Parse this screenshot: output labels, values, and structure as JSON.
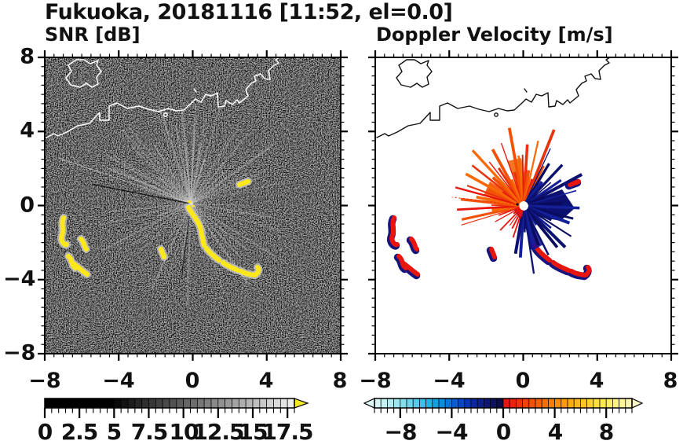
{
  "title": "Fukuoka, 20181116 [11:52, el=0.0]",
  "chart_data": [
    {
      "type": "heatmap",
      "panel": "left",
      "title": "SNR [dB]",
      "xlim": [
        -8,
        8
      ],
      "ylim": [
        -8,
        8
      ],
      "x_ticks": [
        -8,
        -4,
        0,
        4,
        8
      ],
      "y_ticks": [
        8,
        4,
        0,
        -4,
        -8
      ],
      "x_tick_labels": [
        "−8",
        "−4",
        "0",
        "4",
        "8"
      ],
      "y_tick_labels": [
        "8",
        "4",
        "0",
        "−4",
        "−8"
      ],
      "minor_tick_step": 0.5,
      "grid": false,
      "background": "black with faint gray sea-clutter speckle",
      "coastline_color": "#ffffff",
      "radar_site_xy": [
        0.1,
        0.1
      ],
      "features": [
        {
          "name": "west-echo-cluster",
          "x_range": [
            -7.3,
            -5.4
          ],
          "y_range": [
            -4.7,
            -0.5
          ],
          "color": "#ffe81a",
          "description": "yellow high-SNR echoes with pale gray halo"
        },
        {
          "name": "southeast-echo-chain",
          "x_range": [
            -0.3,
            3.3
          ],
          "y_range": [
            -4.2,
            0.2
          ],
          "color": "#ffe81a",
          "description": "curved chain of yellow echoes running from radar toward the southeast"
        },
        {
          "name": "northeast-small-echo",
          "x_range": [
            2.5,
            3.0
          ],
          "y_range": [
            1.1,
            1.4
          ],
          "color": "#ffe81a"
        },
        {
          "name": "radial-clutter-rays",
          "description": "faint gray rays radiating from the radar site"
        }
      ],
      "colorbar": {
        "orientation": "horizontal",
        "range": [
          0,
          18
        ],
        "tick_values": [
          0,
          2.5,
          5,
          7.5,
          10,
          12.5,
          15,
          17.5
        ],
        "tick_labels": [
          "0",
          "2.5",
          "5",
          "7.5",
          "10",
          "12.5",
          "15",
          "17.5"
        ],
        "minor_tick_step": 0.5,
        "over_arrow_color": "#f5e927",
        "segments": [
          "#000000",
          "#000000",
          "#000000",
          "#000000",
          "#000000",
          "#000000",
          "#000000",
          "#000000",
          "#000000",
          "#000000",
          "#0a0a0a",
          "#131313",
          "#1c1c1c",
          "#252525",
          "#2e2e2e",
          "#373737",
          "#404040",
          "#494949",
          "#525252",
          "#5b5b5b",
          "#646464",
          "#6d6d6d",
          "#767676",
          "#808080",
          "#898989",
          "#929292",
          "#9b9b9b",
          "#a4a4a4",
          "#adadad",
          "#b6b6b6",
          "#bfbfbf",
          "#c8c8c8",
          "#d1d1d1",
          "#dadada",
          "#e3e3e3",
          "#ececec"
        ]
      }
    },
    {
      "type": "heatmap",
      "panel": "right",
      "title": "Doppler Velocity [m/s]",
      "xlim": [
        -8,
        8
      ],
      "ylim": [
        -8,
        8
      ],
      "x_ticks": [
        -8,
        -4,
        0,
        4,
        8
      ],
      "y_ticks": [
        8,
        4,
        0,
        -4,
        -8
      ],
      "x_tick_labels": [
        "−8",
        "−4",
        "0",
        "4",
        "8"
      ],
      "y_tick_labels": [
        "8",
        "4",
        "0",
        "−4",
        "−8"
      ],
      "minor_tick_step": 0.5,
      "grid": false,
      "background": "white",
      "coastline_color": "#111111",
      "radar_site_xy": [
        0.1,
        0.1
      ],
      "features": [
        {
          "name": "positive-velocity-fan",
          "sector": "north through west of radar",
          "color": "#f25106",
          "description": "orange/red velocity spikes"
        },
        {
          "name": "negative-velocity-fan",
          "sector": "east through south of radar",
          "color": "#0d1170",
          "description": "dark navy velocity spikes"
        },
        {
          "name": "west-echo-cluster",
          "x_range": [
            -7.3,
            -5.4
          ],
          "y_range": [
            -4.7,
            -0.5
          ],
          "colors": [
            "#e8150d",
            "#15157d"
          ]
        },
        {
          "name": "southeast-echo-chain",
          "x_range": [
            -0.3,
            3.3
          ],
          "y_range": [
            -4.2,
            0.2
          ],
          "colors": [
            "#e8150d",
            "#15157d"
          ]
        }
      ],
      "colorbar": {
        "orientation": "horizontal",
        "range": [
          -10,
          10
        ],
        "tick_values": [
          -8,
          -4,
          0,
          4,
          8
        ],
        "tick_labels": [
          "−8",
          "−4",
          "0",
          "4",
          "8"
        ],
        "minor_tick_step": 0.5,
        "under_arrow_color": "#e0f8f8",
        "over_arrow_color": "#fdf8c6",
        "segments": [
          "#d8f6f6",
          "#c4f1f4",
          "#b0ecf2",
          "#9ce6f0",
          "#84deee",
          "#6cd5ec",
          "#54cbe9",
          "#3cc0e6",
          "#24b2e2",
          "#14a0de",
          "#0b8cdc",
          "#0876d8",
          "#085ed0",
          "#0846c4",
          "#0834b4",
          "#0b28a0",
          "#0d1f8a",
          "#0e1874",
          "#0e125e",
          "#0d0c48",
          "#e31411",
          "#e7230c",
          "#eb3309",
          "#ef4207",
          "#f25106",
          "#f46006",
          "#f66f06",
          "#f87e07",
          "#fa8d0a",
          "#fb9b0e",
          "#fcaa14",
          "#fdb81c",
          "#fdc526",
          "#fed232",
          "#fede40",
          "#fee751",
          "#feee66",
          "#fef37e",
          "#fef697",
          "#fdf7b0"
        ]
      }
    }
  ]
}
